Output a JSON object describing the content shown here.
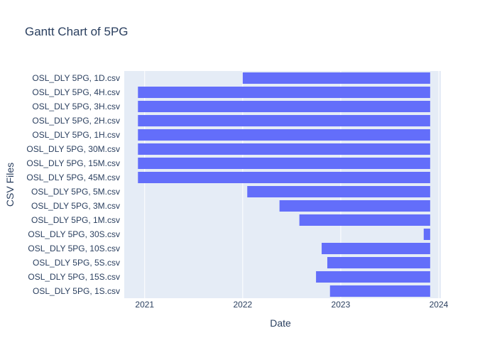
{
  "chart_data": {
    "type": "bar",
    "orientation": "horizontal",
    "title": "Gantt Chart of 5PG",
    "xlabel": "Date",
    "ylabel": "CSV Files",
    "x_ticks": [
      "2021",
      "2022",
      "2023",
      "2024"
    ],
    "xlim": [
      "2020-10-17",
      "2024-01-09"
    ],
    "grid": true,
    "legend": "none",
    "colors": {
      "bar": "#636efa",
      "plot_bg": "#e5ecf6",
      "grid": "#ffffff",
      "text": "#2a3f5f"
    },
    "tasks": [
      {
        "label": "OSL_DLY 5PG, 1D.csv",
        "start": "2022-01-01",
        "end": "2023-11-30"
      },
      {
        "label": "OSL_DLY 5PG, 4H.csv",
        "start": "2020-12-07",
        "end": "2023-11-30"
      },
      {
        "label": "OSL_DLY 5PG, 3H.csv",
        "start": "2020-12-07",
        "end": "2023-11-30"
      },
      {
        "label": "OSL_DLY 5PG, 2H.csv",
        "start": "2020-12-07",
        "end": "2023-11-30"
      },
      {
        "label": "OSL_DLY 5PG, 1H.csv",
        "start": "2020-12-07",
        "end": "2023-11-30"
      },
      {
        "label": "OSL_DLY 5PG, 30M.csv",
        "start": "2020-12-07",
        "end": "2023-11-30"
      },
      {
        "label": "OSL_DLY 5PG, 15M.csv",
        "start": "2020-12-07",
        "end": "2023-11-30"
      },
      {
        "label": "OSL_DLY 5PG, 45M.csv",
        "start": "2020-12-07",
        "end": "2023-11-30"
      },
      {
        "label": "OSL_DLY 5PG, 5M.csv",
        "start": "2022-01-18",
        "end": "2023-11-30"
      },
      {
        "label": "OSL_DLY 5PG, 3M.csv",
        "start": "2022-05-18",
        "end": "2023-11-30"
      },
      {
        "label": "OSL_DLY 5PG, 1M.csv",
        "start": "2022-07-31",
        "end": "2023-11-30"
      },
      {
        "label": "OSL_DLY 5PG, 30S.csv",
        "start": "2023-11-06",
        "end": "2023-11-30"
      },
      {
        "label": "OSL_DLY 5PG, 10S.csv",
        "start": "2022-10-22",
        "end": "2023-11-30"
      },
      {
        "label": "OSL_DLY 5PG, 5S.csv",
        "start": "2022-11-12",
        "end": "2023-11-30"
      },
      {
        "label": "OSL_DLY 5PG, 15S.csv",
        "start": "2022-10-01",
        "end": "2023-11-30"
      },
      {
        "label": "OSL_DLY 5PG, 1S.csv",
        "start": "2022-11-22",
        "end": "2023-11-30"
      }
    ]
  }
}
